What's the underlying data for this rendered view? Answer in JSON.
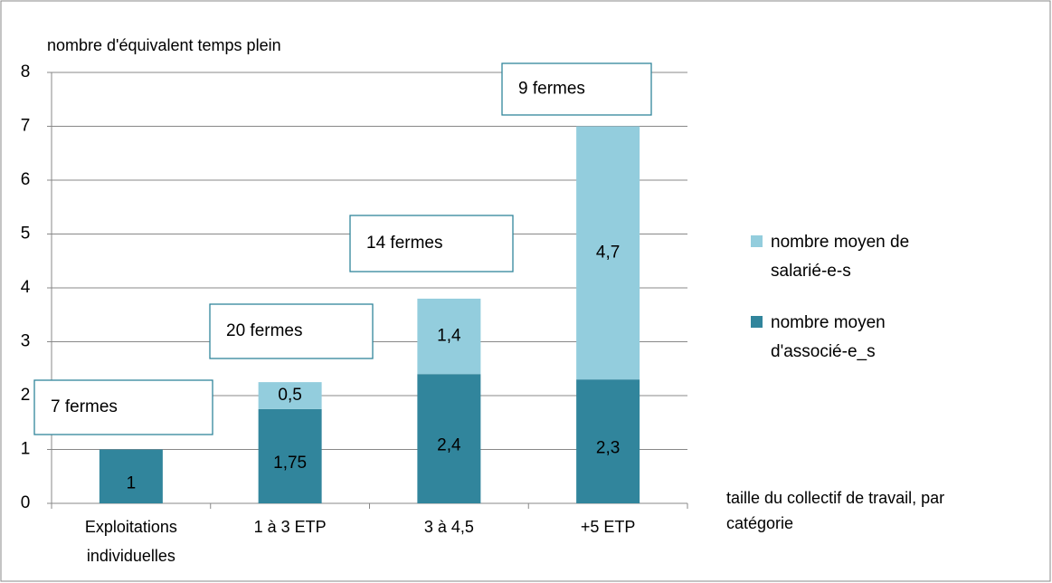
{
  "chart_data": {
    "type": "stacked_bar",
    "y_axis_label": "nombre d'équivalent temps plein",
    "x_axis_label": "taille du collectif de travail, par catégorie",
    "categories": [
      "Exploitations individuelles",
      "1 à 3 ETP",
      "3 à 4,5",
      "+5 ETP"
    ],
    "series": [
      {
        "name": "nombre moyen d'associé-e_s",
        "color": "#31859c",
        "values": [
          1,
          1.75,
          2.4,
          2.3
        ],
        "value_labels": [
          "1",
          "1,75",
          "2,4",
          "2,3"
        ]
      },
      {
        "name": "nombre moyen de salarié-e-s",
        "color": "#93cddd",
        "values": [
          null,
          0.5,
          1.4,
          4.7
        ],
        "value_labels": [
          null,
          "0,5",
          "1,4",
          "4,7"
        ]
      }
    ],
    "annotations": [
      "7 fermes",
      "20 fermes",
      "14 fermes",
      "9 fermes"
    ],
    "ylim": [
      0,
      8
    ],
    "yticks": [
      0,
      1,
      2,
      3,
      4,
      5,
      6,
      7,
      8
    ],
    "grid": true
  }
}
